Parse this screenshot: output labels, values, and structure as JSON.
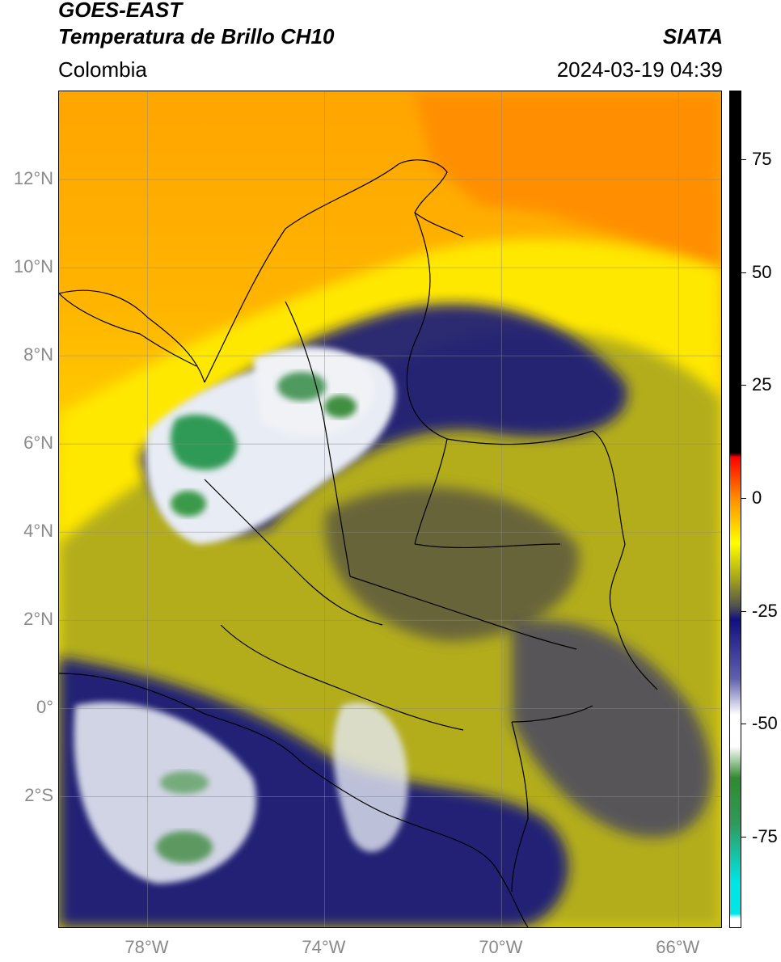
{
  "header": {
    "satellite": "GOES-EAST",
    "product": "Temperatura de Brillo CH10",
    "organization": "SIATA",
    "region": "Colombia",
    "timestamp": "2024-03-19 04:39"
  },
  "map": {
    "lat_range": [
      -5,
      14
    ],
    "lon_range": [
      -80,
      -65
    ],
    "lat_ticks": [
      {
        "value": 12,
        "label": "12°N"
      },
      {
        "value": 10,
        "label": "10°N"
      },
      {
        "value": 8,
        "label": "8°N"
      },
      {
        "value": 6,
        "label": "6°N"
      },
      {
        "value": 4,
        "label": "4°N"
      },
      {
        "value": 2,
        "label": "2°N"
      },
      {
        "value": 0,
        "label": "0°"
      },
      {
        "value": -2,
        "label": "2°S"
      }
    ],
    "lon_ticks": [
      {
        "value": -78,
        "label": "78°W"
      },
      {
        "value": -74,
        "label": "74°W"
      },
      {
        "value": -70,
        "label": "70°W"
      },
      {
        "value": -66,
        "label": "66°W"
      }
    ]
  },
  "colorbar": {
    "range": [
      -95,
      90
    ],
    "ticks": [
      {
        "value": 75,
        "label": "75"
      },
      {
        "value": 50,
        "label": "50"
      },
      {
        "value": 25,
        "label": "25"
      },
      {
        "value": 0,
        "label": "0"
      },
      {
        "value": -25,
        "label": "-25"
      },
      {
        "value": -50,
        "label": "-50"
      },
      {
        "value": -75,
        "label": "-75"
      }
    ],
    "colors": {
      "black": "#000000",
      "red": "#ff0000",
      "orange": "#ff8c00",
      "yellow": "#ffff00",
      "olive": "#a4a21a",
      "gray": "#505050",
      "navy": "#101080",
      "white": "#ffffff",
      "green": "#2f8a2f",
      "cyan": "#00e5e5"
    }
  }
}
